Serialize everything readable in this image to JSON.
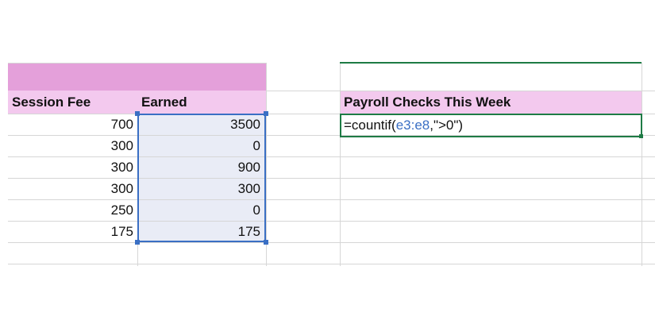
{
  "sheet": {
    "headers": {
      "session_fee": "Session Fee",
      "earned": "Earned",
      "payroll": "Payroll Checks This Week"
    },
    "rows": [
      {
        "fee": "700",
        "earned": "3500"
      },
      {
        "fee": "300",
        "earned": "0"
      },
      {
        "fee": "300",
        "earned": "900"
      },
      {
        "fee": "300",
        "earned": "300"
      },
      {
        "fee": "250",
        "earned": "0"
      },
      {
        "fee": "175",
        "earned": "175"
      }
    ],
    "formula": {
      "prefix": "=countif(",
      "range": "e3:e8",
      "suffix": ",\">0\")"
    }
  },
  "colors": {
    "title_band": "#e4a0da",
    "header_band": "#f3c9ee",
    "selection": "#3a6fc4",
    "selection_fill": "#e9ecf6",
    "active_cell": "#1e7b45",
    "range_ref": "#3a6fc4"
  }
}
